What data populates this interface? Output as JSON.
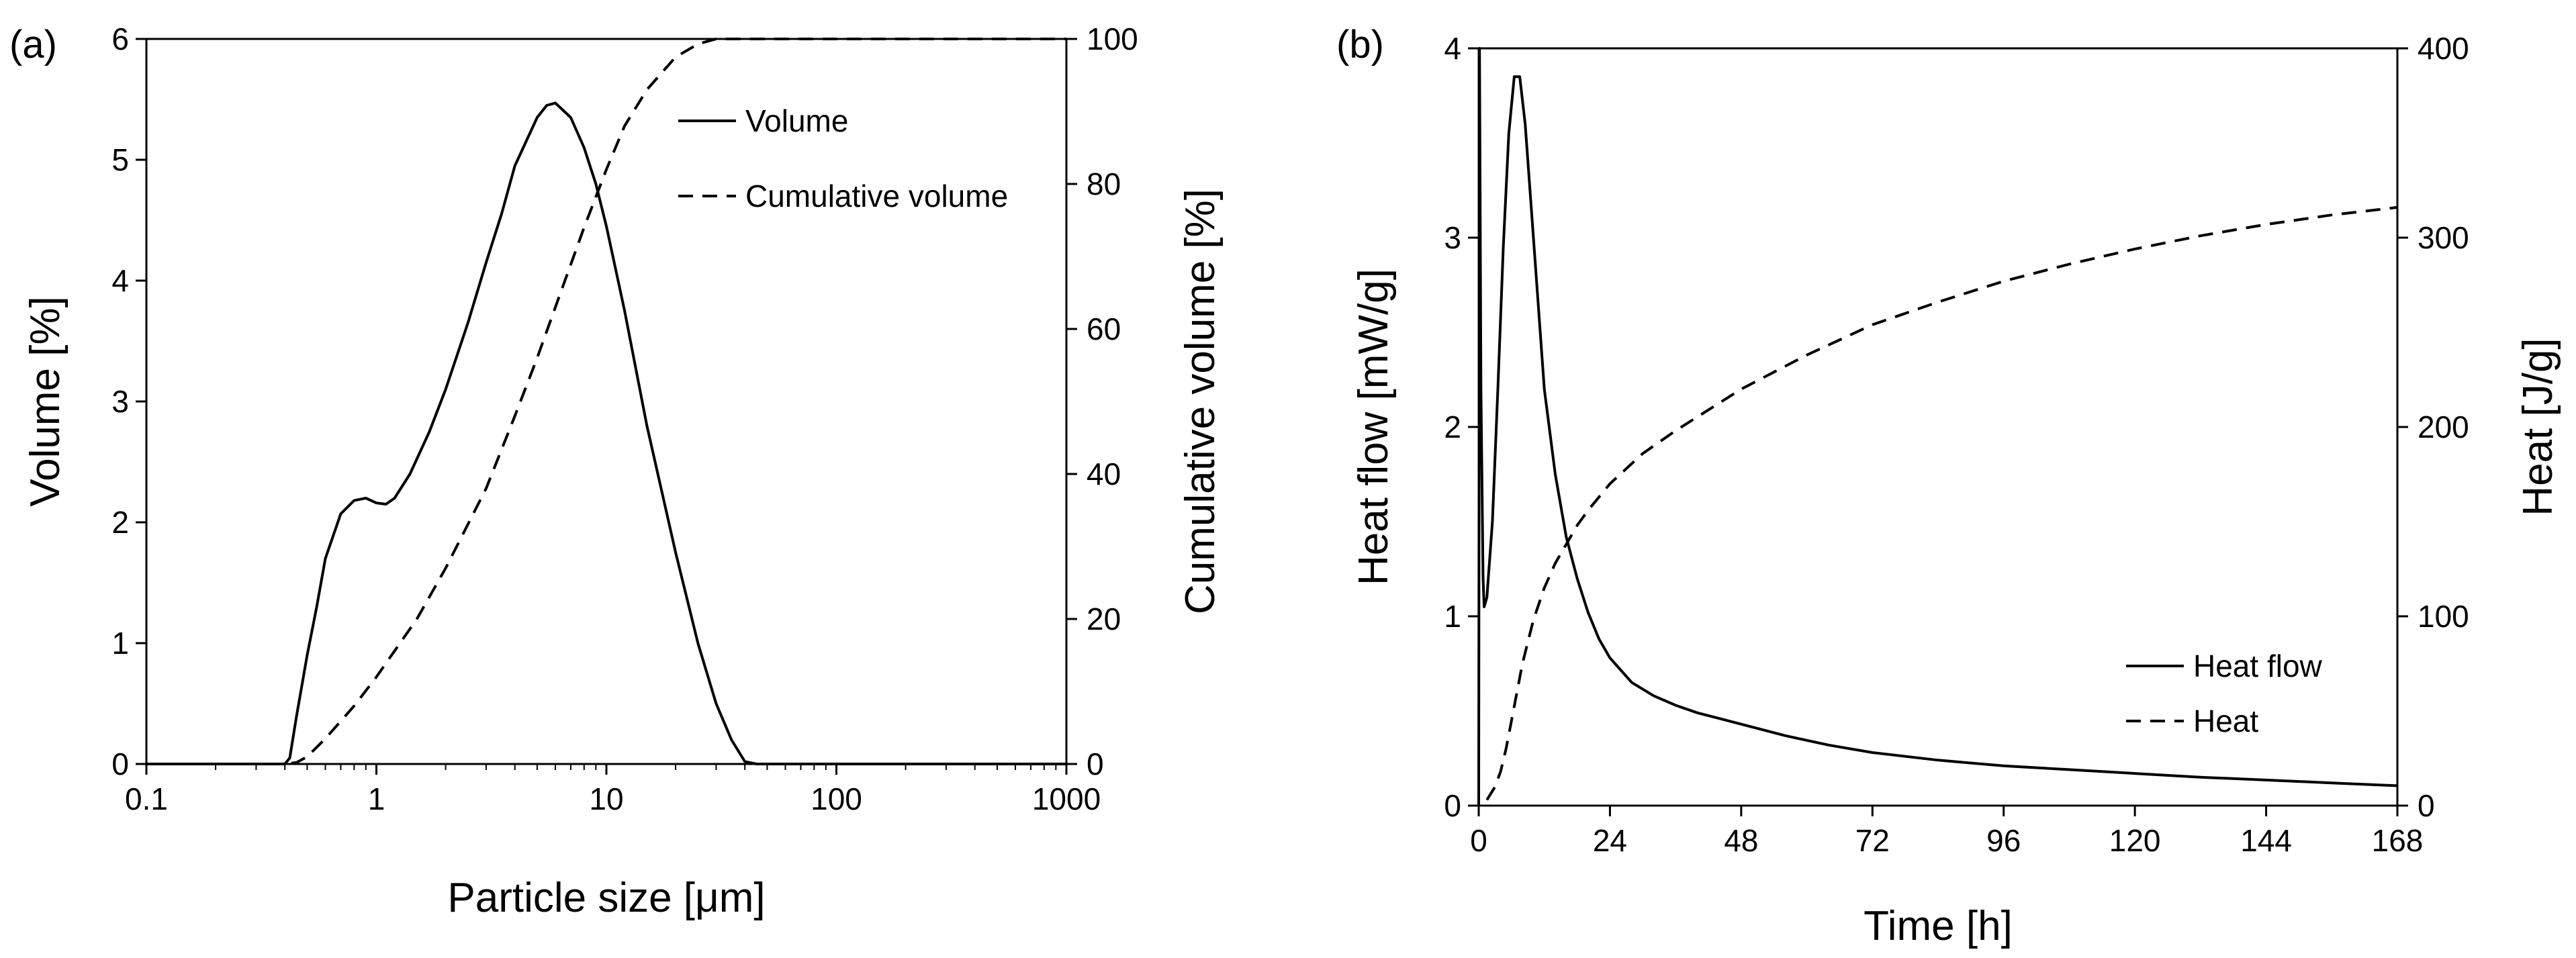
{
  "chart_data": [
    {
      "panel_label": "(a)",
      "type": "line",
      "xscale": "log",
      "xlabel": "Particle size [μm]",
      "ylabel": "Volume [%]",
      "y2label": "Cumulative volume [%]",
      "xlim": [
        0.1,
        1000
      ],
      "ylim": [
        0,
        6
      ],
      "y2lim": [
        0,
        100
      ],
      "xticks": [
        0.1,
        1,
        10,
        100,
        1000
      ],
      "xtick_labels": [
        "0.1",
        "1",
        "10",
        "100",
        "1000"
      ],
      "yticks": [
        0,
        1,
        2,
        3,
        4,
        5,
        6
      ],
      "ytick_labels": [
        "0",
        "1",
        "2",
        "3",
        "4",
        "5",
        "6"
      ],
      "y2ticks": [
        0,
        20,
        40,
        60,
        80,
        100
      ],
      "y2tick_labels": [
        "0",
        "20",
        "40",
        "60",
        "80",
        "100"
      ],
      "legend_position": "top-right",
      "series": [
        {
          "name": "Volume",
          "style": "solid",
          "axis": "left",
          "x": [
            0.1,
            0.3,
            0.4,
            0.42,
            0.45,
            0.5,
            0.55,
            0.6,
            0.7,
            0.8,
            0.9,
            1.0,
            1.1,
            1.2,
            1.4,
            1.7,
            2.0,
            2.5,
            3.0,
            3.5,
            4.0,
            5.0,
            5.5,
            6.0,
            7.0,
            8.0,
            9.0,
            10.0,
            12.0,
            15.0,
            20.0,
            25.0,
            30.0,
            35.0,
            40.0,
            45.0,
            100.0,
            1000.0
          ],
          "y": [
            0,
            0,
            0,
            0.05,
            0.4,
            0.9,
            1.3,
            1.7,
            2.07,
            2.18,
            2.2,
            2.16,
            2.15,
            2.2,
            2.4,
            2.75,
            3.1,
            3.65,
            4.15,
            4.55,
            4.95,
            5.35,
            5.45,
            5.47,
            5.35,
            5.1,
            4.8,
            4.45,
            3.75,
            2.8,
            1.75,
            1.0,
            0.5,
            0.2,
            0.02,
            0,
            0,
            0
          ]
        },
        {
          "name": "Cumulative volume",
          "style": "dashed",
          "axis": "right",
          "x": [
            0.1,
            0.4,
            0.45,
            0.5,
            0.6,
            0.8,
            1.0,
            1.5,
            2.0,
            3.0,
            4.0,
            5.0,
            6.0,
            8.0,
            10.0,
            12.0,
            15.0,
            20.0,
            25.0,
            30.0,
            40.0,
            100.0,
            1000.0
          ],
          "y": [
            0,
            0,
            0.2,
            1.0,
            3.5,
            8.0,
            12.0,
            20.0,
            27.0,
            38.0,
            48.0,
            56.0,
            63.0,
            74.0,
            82.0,
            88.0,
            93.0,
            97.5,
            99.3,
            100,
            100,
            100,
            100
          ]
        }
      ]
    },
    {
      "panel_label": "(b)",
      "type": "line",
      "xlabel": "Time [h]",
      "ylabel": "Heat flow [mW/g]",
      "y2label": "Heat  [J/g]",
      "xlim": [
        0,
        168
      ],
      "ylim": [
        0,
        4
      ],
      "y2lim": [
        0,
        400
      ],
      "xticks": [
        0,
        24,
        48,
        72,
        96,
        120,
        144,
        168
      ],
      "xtick_labels": [
        "0",
        "24",
        "48",
        "72",
        "96",
        "120",
        "144",
        "168"
      ],
      "yticks": [
        0,
        1,
        2,
        3,
        4
      ],
      "ytick_labels": [
        "0",
        "1",
        "2",
        "3",
        "4"
      ],
      "y2ticks": [
        0,
        100,
        200,
        300,
        400
      ],
      "y2tick_labels": [
        "0",
        "100",
        "200",
        "300",
        "400"
      ],
      "legend_position": "bottom-right",
      "series": [
        {
          "name": "Heat flow",
          "style": "solid",
          "axis": "left",
          "x": [
            0,
            0.15,
            0.4,
            0.8,
            1.0,
            1.5,
            2.5,
            3.5,
            4.5,
            5.5,
            6.5,
            7.5,
            8.5,
            9.5,
            11,
            12,
            14,
            16,
            18,
            20,
            22,
            24,
            28,
            32,
            36,
            40,
            48,
            56,
            64,
            72,
            84,
            96,
            108,
            120,
            132,
            144,
            156,
            168
          ],
          "y": [
            0,
            4.0,
            2.2,
            1.2,
            1.05,
            1.1,
            1.5,
            2.2,
            2.95,
            3.55,
            3.85,
            3.85,
            3.6,
            3.2,
            2.6,
            2.2,
            1.75,
            1.42,
            1.2,
            1.02,
            0.88,
            0.78,
            0.65,
            0.58,
            0.53,
            0.49,
            0.43,
            0.37,
            0.32,
            0.28,
            0.24,
            0.21,
            0.19,
            0.17,
            0.15,
            0.135,
            0.12,
            0.105
          ]
        },
        {
          "name": "Heat",
          "style": "dashed",
          "axis": "right",
          "x": [
            1.5,
            3,
            4,
            5,
            6,
            8,
            10,
            12,
            14,
            16,
            18,
            20,
            24,
            30,
            36,
            48,
            60,
            72,
            84,
            96,
            108,
            120,
            132,
            144,
            156,
            168
          ],
          "y": [
            3,
            10,
            18,
            30,
            45,
            75,
            98,
            115,
            128,
            138,
            148,
            156,
            170,
            186,
            198,
            220,
            238,
            254,
            266,
            277,
            286,
            294,
            301,
            307,
            312,
            316
          ]
        }
      ]
    }
  ]
}
